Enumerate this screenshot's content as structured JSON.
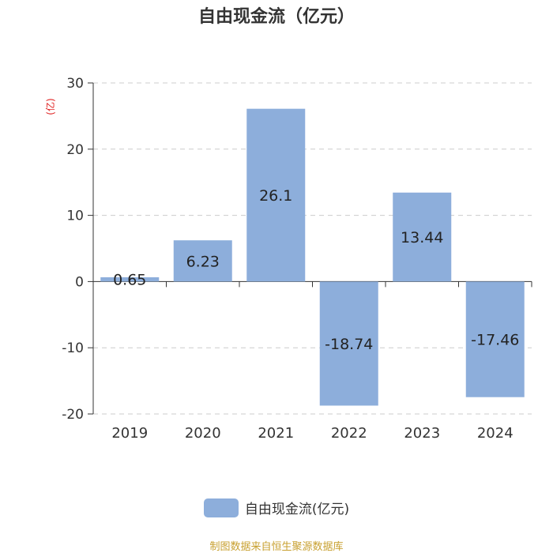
{
  "title": "自由现金流（亿元）",
  "unit_label": "(亿)",
  "legend_label": "自由现金流(亿元)",
  "source_note": "制图数据来自恒生聚源数据库",
  "colors": {
    "bar": "#8daedb",
    "unit_label": "#e02020",
    "source_note": "#c8a030",
    "grid": "#cccccc",
    "axis": "#333333"
  },
  "chart_data": {
    "type": "bar",
    "title": "自由现金流（亿元）",
    "categories": [
      "2019",
      "2020",
      "2021",
      "2022",
      "2023",
      "2024"
    ],
    "series": [
      {
        "name": "自由现金流(亿元)",
        "values": [
          0.65,
          6.23,
          26.1,
          -18.74,
          13.44,
          -17.46
        ]
      }
    ],
    "data_labels": [
      "0.65",
      "6.23",
      "26.1",
      "-18.74",
      "13.44",
      "-17.46"
    ],
    "ylabel": "(亿)",
    "ylim": [
      -20,
      30
    ],
    "yticks": [
      30,
      20,
      10,
      0,
      -10,
      -20
    ],
    "grid": true,
    "legend_position": "bottom"
  }
}
